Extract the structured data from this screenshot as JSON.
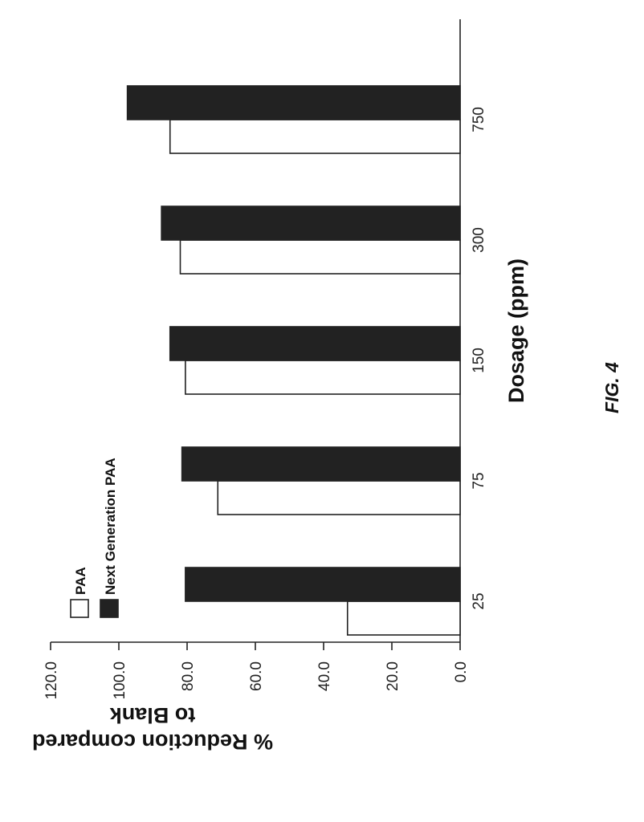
{
  "chart_data": {
    "type": "bar",
    "orientation": "horizontal",
    "categories": [
      "25",
      "75",
      "150",
      "300",
      "750"
    ],
    "series": [
      {
        "name": "PAA",
        "values": [
          33.0,
          71.0,
          80.5,
          82.0,
          85.0
        ],
        "fill": "#ffffff",
        "stroke": "#222222"
      },
      {
        "name": "Next Generation PAA",
        "values": [
          80.5,
          81.5,
          85.0,
          87.5,
          97.5
        ],
        "fill": "#222222",
        "stroke": "#222222"
      }
    ],
    "ylabel_line1": "% Reduction compared",
    "ylabel_line2": "to Blank",
    "xlabel": "Dosage (ppm)",
    "value_axis": {
      "min": 0,
      "max": 120,
      "step": 20
    },
    "value_tick_labels": [
      "0.0",
      "20.0",
      "40.0",
      "60.0",
      "80.0",
      "100.0",
      "120.0"
    ],
    "legend_position": "top-left",
    "grid": false
  },
  "figure_caption": "FIG. 4"
}
